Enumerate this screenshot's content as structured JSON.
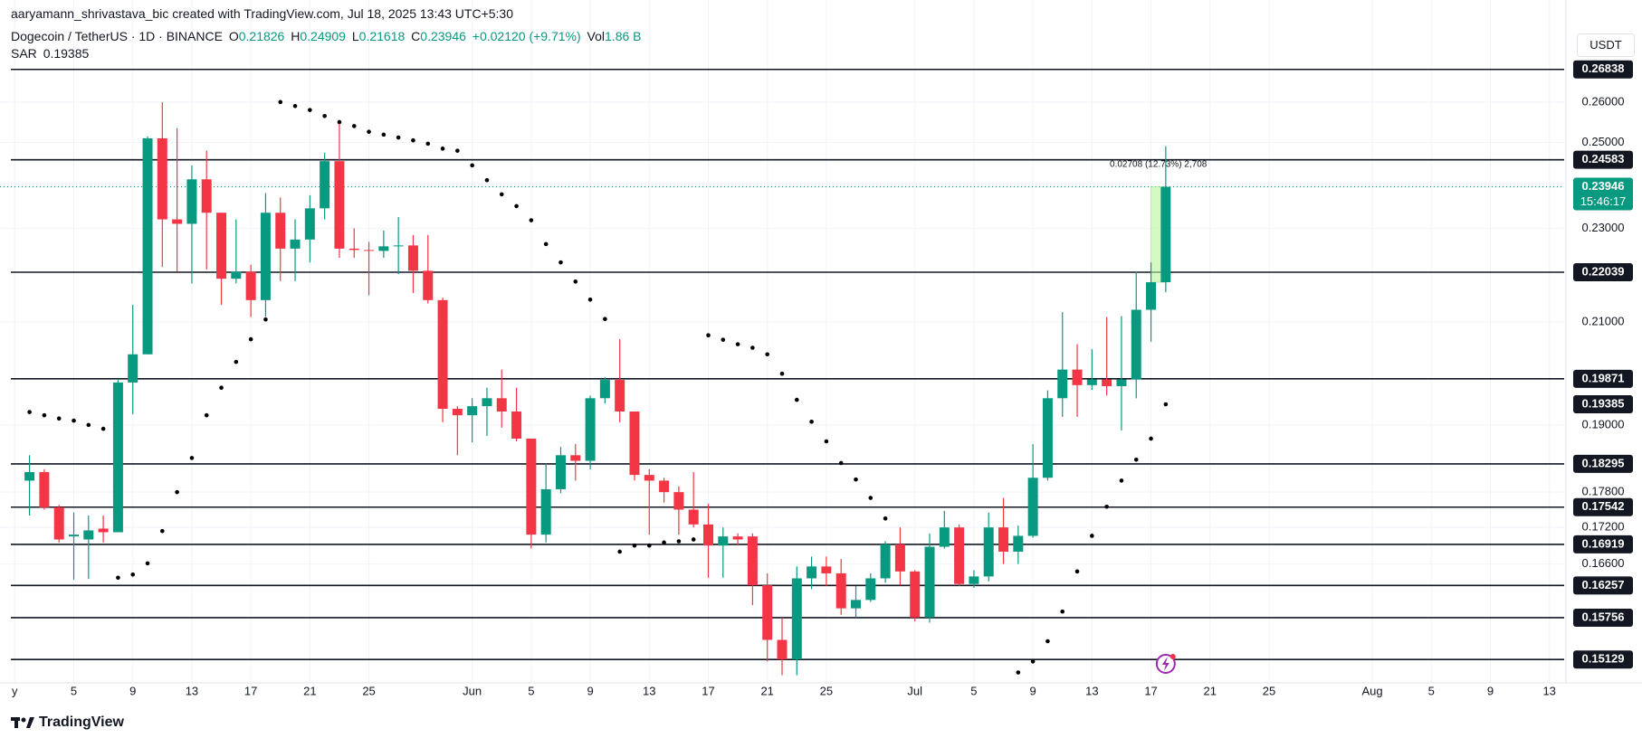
{
  "chart_data": {
    "type": "candlestick",
    "attribution": "aaryamann_shrivastava_bic created with TradingView.com, Jul 18, 2025 13:43 UTC+5:30",
    "title": "Dogecoin / TetherUS · 1D · BINANCE",
    "quote_labels": {
      "open": "O",
      "high": "H",
      "low": "L",
      "close": "C",
      "volume": "Vol"
    },
    "change": "+0.02120 (+9.71%)",
    "volume": "1.86 B",
    "currency": "USDT",
    "countdown": "15:46:17",
    "measure_label": "0.02708 (12.73%) 2,708",
    "brand": "TradingView",
    "up_color": "#089981",
    "down_color": "#f23645",
    "log_scale": true,
    "grid": true,
    "xlim": [
      "2025-04-30",
      "2025-08-14"
    ],
    "ylim": [
      0.1479,
      0.2871
    ],
    "yticks": [
      {
        "value": 0.26,
        "label": "0.26000"
      },
      {
        "value": 0.25,
        "label": "0.25000"
      },
      {
        "value": 0.23,
        "label": "0.23000"
      },
      {
        "value": 0.21,
        "label": "0.21000"
      },
      {
        "value": 0.19,
        "label": "0.19000"
      },
      {
        "value": 0.178,
        "label": "0.17800"
      },
      {
        "value": 0.172,
        "label": "0.17200"
      },
      {
        "value": 0.166,
        "label": "0.16600"
      }
    ],
    "xticks": [
      {
        "value": "2025-05-01",
        "label": "y"
      },
      {
        "value": "2025-05-05",
        "label": "5"
      },
      {
        "value": "2025-05-09",
        "label": "9"
      },
      {
        "value": "2025-05-13",
        "label": "13"
      },
      {
        "value": "2025-05-17",
        "label": "17"
      },
      {
        "value": "2025-05-21",
        "label": "21"
      },
      {
        "value": "2025-05-25",
        "label": "25"
      },
      {
        "value": "2025-06-01",
        "label": "Jun"
      },
      {
        "value": "2025-06-05",
        "label": "5"
      },
      {
        "value": "2025-06-09",
        "label": "9"
      },
      {
        "value": "2025-06-13",
        "label": "13"
      },
      {
        "value": "2025-06-17",
        "label": "17"
      },
      {
        "value": "2025-06-21",
        "label": "21"
      },
      {
        "value": "2025-06-25",
        "label": "25"
      },
      {
        "value": "2025-07-01",
        "label": "Jul"
      },
      {
        "value": "2025-07-05",
        "label": "5"
      },
      {
        "value": "2025-07-09",
        "label": "9"
      },
      {
        "value": "2025-07-13",
        "label": "13"
      },
      {
        "value": "2025-07-17",
        "label": "17"
      },
      {
        "value": "2025-07-21",
        "label": "21"
      },
      {
        "value": "2025-07-25",
        "label": "25"
      },
      {
        "value": "2025-08-01",
        "label": "Aug"
      },
      {
        "value": "2025-08-05",
        "label": "5"
      },
      {
        "value": "2025-08-09",
        "label": "9"
      },
      {
        "value": "2025-08-13",
        "label": "13"
      }
    ],
    "levels": [
      0.26838,
      0.24583,
      0.22039,
      0.19871,
      0.18295,
      0.17542,
      0.16919,
      0.16257,
      0.15756,
      0.15129
    ],
    "x": [
      "2025-05-02",
      "2025-05-03",
      "2025-05-04",
      "2025-05-05",
      "2025-05-06",
      "2025-05-07",
      "2025-05-08",
      "2025-05-09",
      "2025-05-10",
      "2025-05-11",
      "2025-05-12",
      "2025-05-13",
      "2025-05-14",
      "2025-05-15",
      "2025-05-16",
      "2025-05-17",
      "2025-05-18",
      "2025-05-19",
      "2025-05-20",
      "2025-05-21",
      "2025-05-22",
      "2025-05-23",
      "2025-05-24",
      "2025-05-25",
      "2025-05-26",
      "2025-05-27",
      "2025-05-28",
      "2025-05-29",
      "2025-05-30",
      "2025-05-31",
      "2025-06-01",
      "2025-06-02",
      "2025-06-03",
      "2025-06-04",
      "2025-06-05",
      "2025-06-06",
      "2025-06-07",
      "2025-06-08",
      "2025-06-09",
      "2025-06-10",
      "2025-06-11",
      "2025-06-12",
      "2025-06-13",
      "2025-06-14",
      "2025-06-15",
      "2025-06-16",
      "2025-06-17",
      "2025-06-18",
      "2025-06-19",
      "2025-06-20",
      "2025-06-21",
      "2025-06-22",
      "2025-06-23",
      "2025-06-24",
      "2025-06-25",
      "2025-06-26",
      "2025-06-27",
      "2025-06-28",
      "2025-06-29",
      "2025-06-30",
      "2025-07-01",
      "2025-07-02",
      "2025-07-03",
      "2025-07-04",
      "2025-07-05",
      "2025-07-06",
      "2025-07-07",
      "2025-07-08",
      "2025-07-09",
      "2025-07-10",
      "2025-07-11",
      "2025-07-12",
      "2025-07-13",
      "2025-07-14",
      "2025-07-15",
      "2025-07-16",
      "2025-07-17",
      "2025-07-18"
    ],
    "open": [
      0.18,
      0.1815,
      0.1754,
      0.1705,
      0.17,
      0.1718,
      0.1712,
      0.198,
      0.2035,
      0.251,
      0.232,
      0.231,
      0.2412,
      0.2335,
      0.219,
      0.2205,
      0.2145,
      0.2335,
      0.2255,
      0.2275,
      0.2345,
      0.2455,
      0.2255,
      0.2252,
      0.225,
      0.226,
      0.2262,
      0.2207,
      0.2145,
      0.193,
      0.1918,
      0.1935,
      0.195,
      0.1925,
      0.1875,
      0.1708,
      0.1785,
      0.1845,
      0.1835,
      0.195,
      0.1985,
      0.1925,
      0.181,
      0.18,
      0.178,
      0.175,
      0.1725,
      0.169,
      0.1705,
      0.1705,
      0.1626,
      0.1542,
      0.1513,
      0.1637,
      0.1656,
      0.1645,
      0.159,
      0.1603,
      0.1637,
      0.1692,
      0.1648,
      0.1576,
      0.1688,
      0.172,
      0.1628,
      0.164,
      0.172,
      0.168,
      0.1706,
      0.1805,
      0.195,
      0.2005,
      0.1975,
      0.1986,
      0.1973,
      0.1986,
      0.2125,
      0.21826
    ],
    "high": [
      0.1845,
      0.182,
      0.1758,
      0.1745,
      0.174,
      0.174,
      0.1985,
      0.2135,
      0.2515,
      0.26,
      0.2535,
      0.2445,
      0.248,
      0.2335,
      0.232,
      0.222,
      0.238,
      0.237,
      0.232,
      0.2375,
      0.2475,
      0.2545,
      0.23,
      0.227,
      0.2295,
      0.2325,
      0.2285,
      0.2285,
      0.215,
      0.1935,
      0.195,
      0.197,
      0.2005,
      0.197,
      0.1875,
      0.183,
      0.186,
      0.1865,
      0.1955,
      0.199,
      0.2065,
      0.1925,
      0.182,
      0.1805,
      0.179,
      0.1815,
      0.176,
      0.172,
      0.171,
      0.171,
      0.1645,
      0.1576,
      0.1656,
      0.1672,
      0.1672,
      0.1668,
      0.1625,
      0.1645,
      0.1697,
      0.172,
      0.165,
      0.171,
      0.1748,
      0.1725,
      0.165,
      0.1745,
      0.177,
      0.1723,
      0.1865,
      0.1965,
      0.212,
      0.2055,
      0.2045,
      0.211,
      0.2112,
      0.2205,
      0.2225,
      0.24909
    ],
    "low": [
      0.174,
      0.175,
      0.1695,
      0.1635,
      0.1636,
      0.1695,
      0.1712,
      0.192,
      0.2035,
      0.2215,
      0.2205,
      0.218,
      0.221,
      0.2135,
      0.218,
      0.211,
      0.211,
      0.2185,
      0.2185,
      0.2225,
      0.232,
      0.2235,
      0.2235,
      0.2155,
      0.2235,
      0.22,
      0.216,
      0.2138,
      0.1905,
      0.1845,
      0.1868,
      0.188,
      0.1895,
      0.187,
      0.1685,
      0.1695,
      0.1778,
      0.18,
      0.182,
      0.194,
      0.1905,
      0.18,
      0.1708,
      0.1762,
      0.1708,
      0.172,
      0.1638,
      0.1638,
      0.169,
      0.1595,
      0.151,
      0.149,
      0.149,
      0.162,
      0.1625,
      0.158,
      0.1576,
      0.16,
      0.163,
      0.1626,
      0.157,
      0.1568,
      0.1685,
      0.1625,
      0.1622,
      0.1632,
      0.166,
      0.166,
      0.1703,
      0.18,
      0.1915,
      0.1915,
      0.1966,
      0.1955,
      0.189,
      0.195,
      0.206,
      0.21618
    ],
    "close": [
      0.1815,
      0.1754,
      0.17,
      0.1708,
      0.1715,
      0.1712,
      0.198,
      0.2035,
      0.251,
      0.232,
      0.231,
      0.2412,
      0.2335,
      0.219,
      0.2205,
      0.2145,
      0.2335,
      0.2255,
      0.2275,
      0.2345,
      0.2455,
      0.2255,
      0.2252,
      0.225,
      0.226,
      0.2262,
      0.2207,
      0.2145,
      0.193,
      0.1918,
      0.1935,
      0.195,
      0.1925,
      0.1875,
      0.1708,
      0.1785,
      0.1845,
      0.1835,
      0.195,
      0.1985,
      0.1925,
      0.181,
      0.18,
      0.178,
      0.175,
      0.1725,
      0.169,
      0.1705,
      0.17,
      0.1626,
      0.1542,
      0.1513,
      0.1637,
      0.1656,
      0.1645,
      0.159,
      0.1603,
      0.1637,
      0.1692,
      0.1648,
      0.1576,
      0.1688,
      0.172,
      0.1628,
      0.164,
      0.172,
      0.168,
      0.1706,
      0.1805,
      0.195,
      0.2005,
      0.1975,
      0.1986,
      0.1973,
      0.1986,
      0.2125,
      0.21826,
      0.23946
    ],
    "sar": {
      "name": "SAR",
      "color": "#000000",
      "values": [
        0.1924,
        0.1918,
        0.1912,
        0.1908,
        0.19,
        0.1893,
        0.1638,
        0.1643,
        0.1661,
        0.1714,
        0.178,
        0.184,
        0.1918,
        0.197,
        0.202,
        0.2065,
        0.2105,
        0.26,
        0.259,
        0.258,
        0.2565,
        0.255,
        0.254,
        0.2526,
        0.2519,
        0.2512,
        0.2505,
        0.2497,
        0.2485,
        0.248,
        0.2445,
        0.241,
        0.2377,
        0.235,
        0.2318,
        0.2265,
        0.2225,
        0.2184,
        0.2146,
        0.2106,
        0.168,
        0.169,
        0.169,
        0.1695,
        0.1697,
        0.17,
        0.2073,
        0.2064,
        0.2055,
        0.2048,
        0.2035,
        0.1997,
        0.1947,
        0.1906,
        0.187,
        0.1831,
        0.1802,
        0.177,
        0.1735,
        null,
        null,
        null,
        null,
        null,
        null,
        null,
        null,
        0.1494,
        0.151,
        0.154,
        0.1585,
        0.1648,
        0.1706,
        0.1755,
        0.18,
        0.1837,
        0.1875,
        0.19385
      ]
    }
  }
}
